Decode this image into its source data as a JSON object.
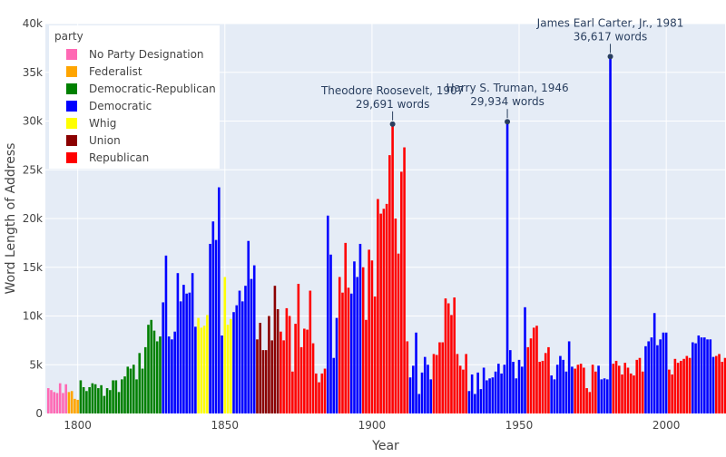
{
  "chart_data": {
    "type": "bar",
    "title": "",
    "xlabel": "Year",
    "ylabel": "Word Length of Address",
    "xlim": [
      1789,
      2020
    ],
    "ylim": [
      0,
      40000
    ],
    "x_ticks": [
      1800,
      1850,
      1900,
      1950,
      2000
    ],
    "y_ticks": [
      0,
      5000,
      10000,
      15000,
      20000,
      25000,
      30000,
      35000,
      40000
    ],
    "y_tick_labels": [
      "0",
      "5k",
      "10k",
      "15k",
      "20k",
      "25k",
      "30k",
      "35k",
      "40k"
    ],
    "grid": true,
    "plot_background": "#E5ECF6",
    "legend": {
      "title": "party",
      "placement": "top-left",
      "entries": [
        {
          "label": "No Party Designation",
          "color": "#FF69B4"
        },
        {
          "label": "Federalist",
          "color": "#FFA500"
        },
        {
          "label": "Democratic-Republican",
          "color": "#008000"
        },
        {
          "label": "Democratic",
          "color": "#0000FF"
        },
        {
          "label": "Whig",
          "color": "#FFFF00"
        },
        {
          "label": "Union",
          "color": "#8B0000"
        },
        {
          "label": "Republican",
          "color": "#FF0000"
        }
      ]
    },
    "annotations": [
      {
        "line1": "Theodore Roosevelt, 1907",
        "line2": "29,691 words",
        "x": 1907,
        "y": 29691
      },
      {
        "line1": "Harry S. Truman, 1946",
        "line2": "29,934 words",
        "x": 1946,
        "y": 29934
      },
      {
        "line1": "James Earl Carter, Jr., 1981",
        "line2": "36,617 words",
        "x": 1981,
        "y": 36617
      }
    ],
    "series": [
      {
        "name": "No Party Designation",
        "color": "#FF69B4",
        "x": [
          1790,
          1791,
          1792,
          1793,
          1794,
          1795,
          1796
        ],
        "values": [
          2600,
          2400,
          2200,
          2100,
          3100,
          2100,
          3000
        ]
      },
      {
        "name": "Federalist",
        "color": "#FFA500",
        "x": [
          1797,
          1798,
          1799,
          1800
        ],
        "values": [
          2200,
          2300,
          1500,
          1400
        ]
      },
      {
        "name": "Democratic-Republican",
        "color": "#008000",
        "x": [
          1801,
          1802,
          1803,
          1804,
          1805,
          1806,
          1807,
          1808,
          1809,
          1810,
          1811,
          1812,
          1813,
          1814,
          1815,
          1816,
          1817,
          1818,
          1819,
          1820,
          1821,
          1822,
          1823,
          1824,
          1825,
          1826,
          1827,
          1828
        ],
        "values": [
          3400,
          2700,
          2300,
          2700,
          3100,
          3000,
          2600,
          2900,
          1800,
          2600,
          2400,
          3400,
          3400,
          2200,
          3500,
          3800,
          4800,
          4600,
          5000,
          3500,
          6200,
          4600,
          6800,
          9100,
          9600,
          8500,
          7400,
          7900
        ]
      },
      {
        "name": "Democratic",
        "color": "#0000FF",
        "x": [
          1829,
          1830,
          1831,
          1832,
          1833,
          1834,
          1835,
          1836,
          1837,
          1838,
          1839,
          1840,
          1845,
          1846,
          1847,
          1848,
          1849,
          1853,
          1854,
          1855,
          1856,
          1857,
          1858,
          1859,
          1860,
          1885,
          1886,
          1887,
          1888,
          1893,
          1894,
          1895,
          1896,
          1913,
          1914,
          1915,
          1916,
          1917,
          1918,
          1919,
          1920,
          1933,
          1934,
          1935,
          1936,
          1937,
          1938,
          1939,
          1940,
          1941,
          1942,
          1943,
          1944,
          1945,
          1946,
          1947,
          1948,
          1949,
          1950,
          1951,
          1952,
          1961,
          1962,
          1963,
          1964,
          1965,
          1966,
          1967,
          1968,
          1977,
          1978,
          1979,
          1980,
          1981,
          1993,
          1994,
          1995,
          1996,
          1997,
          1998,
          1999,
          2000,
          2009,
          2010,
          2011,
          2012,
          2013,
          2014,
          2015,
          2016
        ],
        "values": [
          11400,
          16200,
          7900,
          7600,
          8400,
          14400,
          11500,
          13200,
          12300,
          12400,
          14400,
          8900,
          17400,
          19700,
          17800,
          23200,
          8000,
          10400,
          11100,
          12600,
          11500,
          13100,
          17700,
          13800,
          15200,
          20300,
          16300,
          5700,
          9800,
          12300,
          15600,
          14000,
          17400,
          3700,
          4900,
          8300,
          2000,
          4200,
          5800,
          5000,
          3500,
          2300,
          4000,
          2000,
          4200,
          2500,
          4700,
          3400,
          3600,
          3700,
          4300,
          5100,
          4100,
          5000,
          29934,
          6500,
          5300,
          3600,
          5500,
          4800,
          10900,
          3900,
          3500,
          5000,
          5900,
          5500,
          4300,
          7400,
          4800,
          4900,
          3500,
          3600,
          3500,
          36617,
          6900,
          7400,
          7800,
          10300,
          7000,
          7600,
          8300,
          8300,
          7300,
          7200,
          8000,
          7800,
          7800,
          7600,
          7600,
          5800
        ]
      },
      {
        "name": "Whig",
        "color": "#FFFF00",
        "x": [
          1841,
          1842,
          1843,
          1844,
          1850,
          1851,
          1852
        ],
        "values": [
          9800,
          8800,
          9000,
          10100,
          14000,
          9100,
          9700
        ]
      },
      {
        "name": "Union",
        "color": "#8B0000",
        "x": [
          1861,
          1862,
          1863,
          1864,
          1865,
          1866,
          1867,
          1868
        ],
        "values": [
          7600,
          9300,
          6500,
          6500,
          10000,
          7500,
          13100,
          10700
        ]
      },
      {
        "name": "Republican",
        "color": "#FF0000",
        "x": [
          1869,
          1870,
          1871,
          1872,
          1873,
          1874,
          1875,
          1876,
          1877,
          1878,
          1879,
          1880,
          1881,
          1882,
          1883,
          1884,
          1889,
          1890,
          1891,
          1892,
          1897,
          1898,
          1899,
          1900,
          1901,
          1902,
          1903,
          1904,
          1905,
          1906,
          1907,
          1908,
          1909,
          1910,
          1911,
          1912,
          1921,
          1922,
          1923,
          1924,
          1925,
          1926,
          1927,
          1928,
          1929,
          1930,
          1931,
          1932,
          1953,
          1954,
          1955,
          1956,
          1957,
          1958,
          1959,
          1960,
          1969,
          1970,
          1971,
          1972,
          1973,
          1974,
          1975,
          1976,
          1982,
          1983,
          1984,
          1985,
          1986,
          1987,
          1988,
          1989,
          1990,
          1991,
          1992,
          2001,
          2002,
          2003,
          2004,
          2005,
          2006,
          2007,
          2008,
          2017,
          2018,
          2019,
          2020
        ],
        "values": [
          8400,
          7500,
          10800,
          10000,
          4300,
          9200,
          13300,
          6800,
          8700,
          8600,
          12600,
          7200,
          4100,
          3200,
          4100,
          4600,
          14000,
          12400,
          17500,
          12900,
          15000,
          9600,
          16800,
          15700,
          12000,
          22000,
          20500,
          21000,
          21500,
          26500,
          29691,
          20000,
          16400,
          24800,
          27300,
          7400,
          6100,
          6000,
          7300,
          7300,
          11800,
          11300,
          10100,
          11900,
          6100,
          4900,
          4500,
          6100,
          6800,
          7700,
          8800,
          9000,
          5300,
          5400,
          6200,
          6800,
          4600,
          5000,
          5100,
          4700,
          2600,
          2200,
          5000,
          4300,
          5100,
          5400,
          4900,
          4000,
          5200,
          4700,
          4100,
          3900,
          5500,
          5700,
          4300,
          4500,
          4000,
          5600,
          5200,
          5400,
          5600,
          5900,
          5700,
          5900,
          6100,
          5300,
          5700
        ]
      }
    ]
  }
}
